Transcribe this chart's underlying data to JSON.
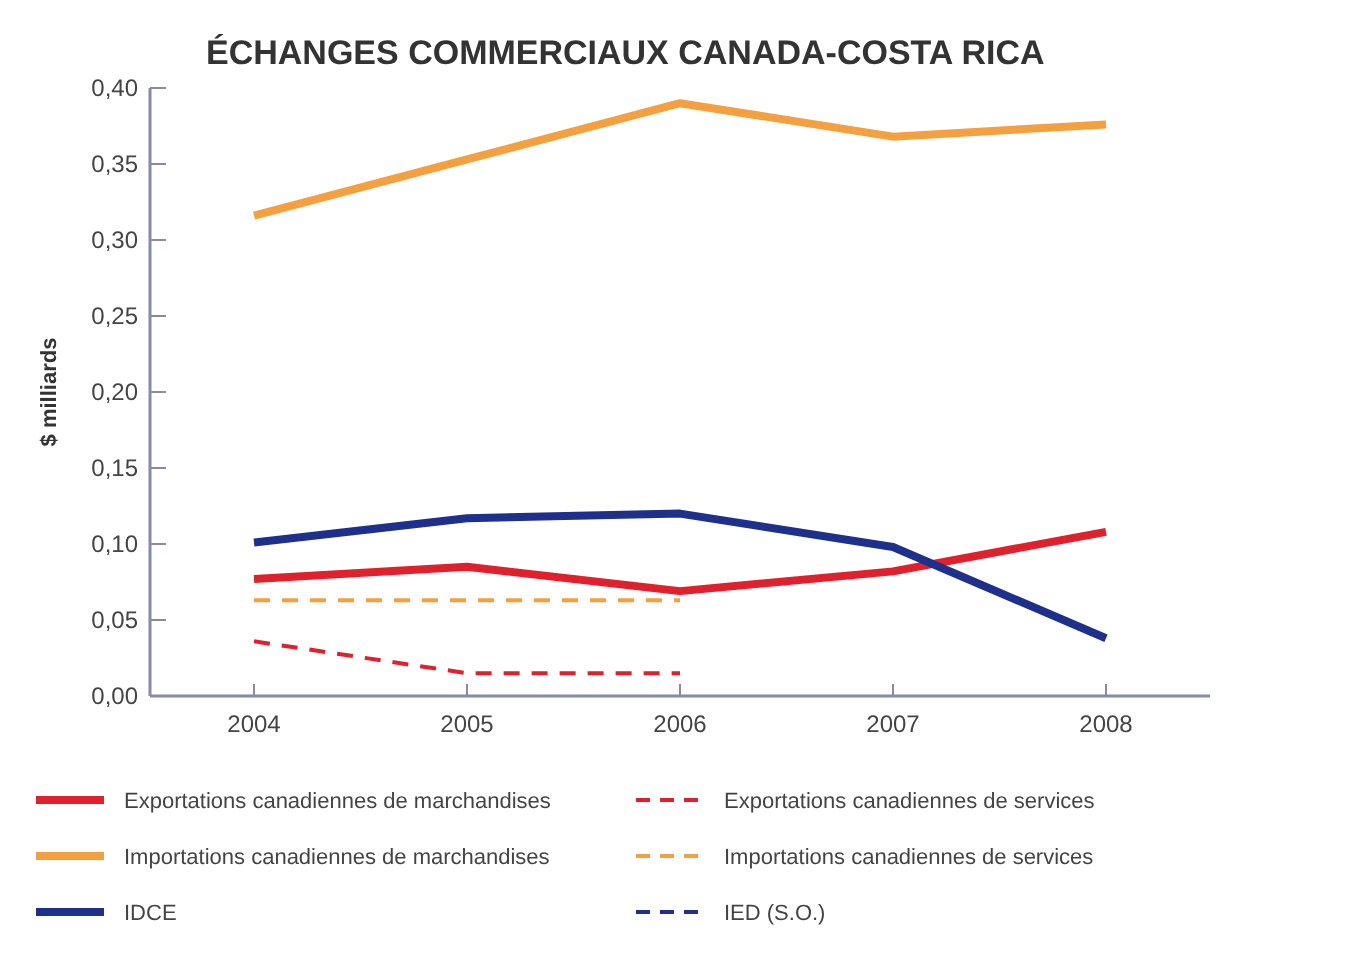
{
  "chart_data": {
    "type": "line",
    "title": "ÉCHANGES COMMERCIAUX CANADA-COSTA RICA",
    "ylabel": "$ milliards",
    "categories": [
      "2004",
      "2005",
      "2006",
      "2007",
      "2008"
    ],
    "ylim": [
      0,
      0.4
    ],
    "yticks": [
      {
        "value": 0,
        "label": "0,00"
      },
      {
        "value": 0.05,
        "label": "0,05"
      },
      {
        "value": 0.1,
        "label": "0,10"
      },
      {
        "value": 0.15,
        "label": "0,15"
      },
      {
        "value": 0.2,
        "label": "0,20"
      },
      {
        "value": 0.25,
        "label": "0,25"
      },
      {
        "value": 0.3,
        "label": "0,30"
      },
      {
        "value": 0.35,
        "label": "0,35"
      },
      {
        "value": 0.4,
        "label": "0,40"
      }
    ],
    "grid": false,
    "legend": "bottom",
    "series": [
      {
        "name": "Exportations canadiennes de marchandises",
        "color": "#e0202c",
        "line_style": "solid",
        "values": [
          0.077,
          0.085,
          0.069,
          0.082,
          0.108
        ]
      },
      {
        "name": "Exportations canadiennes de services",
        "color": "#e0202c",
        "line_style": "dashed",
        "values": [
          0.036,
          0.015,
          0.015,
          null,
          null
        ]
      },
      {
        "name": "Importations canadiennes de marchandises",
        "color": "#f5a040",
        "line_style": "solid",
        "values": [
          0.316,
          0.353,
          0.39,
          0.368,
          0.376
        ]
      },
      {
        "name": "Importations canadiennes de services",
        "color": "#f5a040",
        "line_style": "dashed",
        "values": [
          0.063,
          0.063,
          0.063,
          null,
          null
        ]
      },
      {
        "name": "IDCE",
        "color": "#1e2f8c",
        "line_style": "solid",
        "values": [
          0.101,
          0.117,
          0.12,
          0.098,
          0.038
        ]
      },
      {
        "name": "IED (S.O.)",
        "color": "#1e2f8c",
        "line_style": "dashed",
        "values": [
          null,
          null,
          null,
          null,
          null
        ]
      }
    ]
  }
}
